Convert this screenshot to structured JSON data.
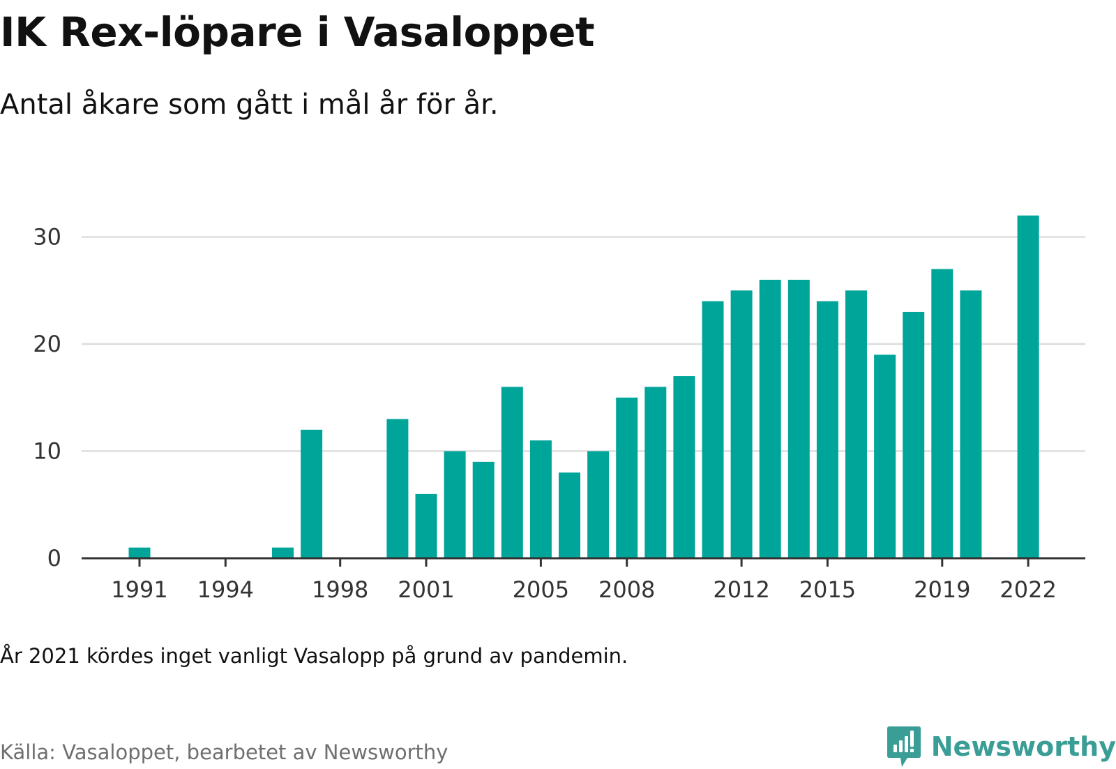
{
  "header": {
    "title": "IK Rex-löpare i Vasaloppet",
    "subtitle": "Antal åkare som gått i mål år för år."
  },
  "footer": {
    "note": "År 2021 kördes inget vanligt Vasalopp på grund av pandemin.",
    "source": "Källa: Vasaloppet, bearbetet av Newsworthy",
    "brand": "Newsworthy",
    "brand_icon": "newsworthy-logo-icon"
  },
  "colors": {
    "bar": "#00a59a",
    "grid": "#dddddd",
    "axis": "#333333",
    "brand": "#3a9d96"
  },
  "chart_data": {
    "type": "bar",
    "x": [
      1991,
      1992,
      1993,
      1994,
      1995,
      1996,
      1997,
      1998,
      1999,
      2000,
      2001,
      2002,
      2003,
      2004,
      2005,
      2006,
      2007,
      2008,
      2009,
      2010,
      2011,
      2012,
      2013,
      2014,
      2015,
      2016,
      2017,
      2018,
      2019,
      2020,
      2021,
      2022
    ],
    "values": [
      1,
      0,
      0,
      0,
      0,
      1,
      12,
      0,
      0,
      13,
      6,
      10,
      9,
      16,
      11,
      8,
      10,
      15,
      16,
      17,
      24,
      25,
      26,
      26,
      24,
      25,
      19,
      23,
      27,
      25,
      0,
      32
    ],
    "x_ticks": [
      1991,
      1994,
      1998,
      2001,
      2005,
      2008,
      2012,
      2015,
      2019,
      2022
    ],
    "y_ticks": [
      0,
      10,
      20,
      30
    ],
    "ylim": [
      0,
      32
    ],
    "xlabel": "",
    "ylabel": "",
    "grid": true
  }
}
